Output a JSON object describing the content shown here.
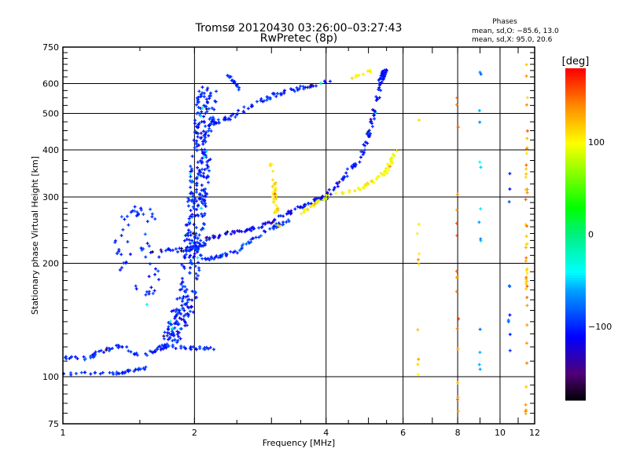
{
  "chart_data": {
    "type": "scatter",
    "title": "Tromsø 20120430 03:26:00–03:27:43",
    "subtitle": "RwPretec (8p)",
    "stats": {
      "heading": "Phases",
      "line_o": "mean, sd,O: −85.6, 13.0",
      "line_x": "mean, sd,X:  95.0, 20.6"
    },
    "xlabel": "Frequency [MHz]",
    "ylabel": "Stationary phase Virtual Height [km]",
    "xscale": "log",
    "yscale": "log",
    "xlim": [
      1,
      12
    ],
    "ylim": [
      75,
      750
    ],
    "xticks": [
      1,
      2,
      4,
      6,
      8,
      10,
      12
    ],
    "xtick_labels": [
      "1",
      "2",
      "4",
      "6",
      "8",
      "10",
      "12"
    ],
    "yticks": [
      75,
      100,
      200,
      300,
      400,
      500,
      600,
      750
    ],
    "ytick_labels": [
      "75",
      "100",
      "200",
      "300",
      "400",
      "500",
      "600",
      "750"
    ],
    "x_gridlines": [
      2,
      4,
      6,
      8,
      10
    ],
    "y_gridlines": [
      100,
      200,
      300,
      400,
      500,
      600
    ],
    "grid": true,
    "colorbar": {
      "label": "[deg]",
      "range": [
        -180,
        180
      ],
      "ticks": [
        100,
        0,
        -100
      ],
      "tick_labels": [
        "100",
        "0",
        "−100"
      ],
      "colormap": "rainbow (black-purple-blue-cyan-green-yellow-red)"
    },
    "traces": [
      {
        "name": "low-trace-a",
        "phase": -95,
        "points": [
          [
            1.0,
            102
          ],
          [
            1.34,
            102
          ],
          [
            1.58,
            106
          ]
        ],
        "count": 40,
        "spread": 0.01
      },
      {
        "name": "low-trace-b",
        "phase": -100,
        "points": [
          [
            1.0,
            112
          ],
          [
            1.16,
            112
          ],
          [
            1.2,
            116
          ],
          [
            1.36,
            121
          ],
          [
            1.51,
            113
          ],
          [
            1.71,
            121
          ],
          [
            1.94,
            119
          ],
          [
            2.2,
            119
          ]
        ],
        "count": 90,
        "spread": 0.012
      },
      {
        "name": "f1-ledge",
        "phase": -100,
        "points": [
          [
            1.51,
            217
          ],
          [
            1.94,
            217
          ],
          [
            2.1,
            225
          ]
        ],
        "count": 45,
        "spread": 0.015
      },
      {
        "name": "f-cusp-vertical",
        "phase": -100,
        "points": [
          [
            1.75,
            120
          ],
          [
            1.92,
            160
          ],
          [
            1.99,
            220
          ],
          [
            2.03,
            300
          ],
          [
            2.08,
            420
          ],
          [
            2.14,
            575
          ]
        ],
        "count": 420,
        "spread": 0.05
      },
      {
        "name": "f2-lower",
        "phase": -110,
        "points": [
          [
            2.125,
            232
          ],
          [
            2.39,
            240
          ],
          [
            2.81,
            249
          ],
          [
            3.19,
            267
          ],
          [
            3.76,
            294
          ],
          [
            4.0,
            300
          ]
        ],
        "count": 90,
        "spread": 0.012
      },
      {
        "name": "f2-lower-b",
        "phase": -95,
        "points": [
          [
            2.125,
            205
          ],
          [
            2.49,
            215
          ],
          [
            2.81,
            237
          ],
          [
            3.3,
            262
          ]
        ],
        "count": 60,
        "spread": 0.012
      },
      {
        "name": "o-mode-rise",
        "phase": -105,
        "points": [
          [
            4.0,
            300
          ],
          [
            4.82,
            383
          ],
          [
            5.13,
            487
          ],
          [
            5.35,
            619
          ],
          [
            5.47,
            656
          ]
        ],
        "count": 110,
        "spread": 0.012
      },
      {
        "name": "x-mode-rise",
        "phase": 100,
        "points": [
          [
            3.5,
            272
          ],
          [
            4.0,
            300
          ],
          [
            4.82,
            316
          ],
          [
            5.47,
            348
          ],
          [
            5.81,
            402
          ]
        ],
        "count": 80,
        "spread": 0.01
      },
      {
        "name": "upper-echo",
        "phase": -100,
        "points": [
          [
            2.125,
            464
          ],
          [
            2.39,
            487
          ],
          [
            2.93,
            549
          ],
          [
            3.32,
            576
          ],
          [
            4.09,
            605
          ]
        ],
        "count": 80,
        "spread": 0.015
      },
      {
        "name": "upper-echo-b",
        "phase": -95,
        "points": [
          [
            2.39,
            630
          ],
          [
            2.55,
            580
          ]
        ],
        "count": 18,
        "spread": 0.01
      },
      {
        "name": "x-vertical",
        "phase": 110,
        "points": [
          [
            3.0,
            375
          ],
          [
            3.06,
            300
          ],
          [
            3.1,
            250
          ]
        ],
        "count": 35,
        "spread": 0.012
      },
      {
        "name": "e-scatter",
        "phase": -95,
        "points": [
          [
            1.35,
            180
          ],
          [
            1.4,
            270
          ],
          [
            1.55,
            280
          ],
          [
            1.62,
            190
          ],
          [
            1.5,
            160
          ]
        ],
        "count": 60,
        "spread": 0.05
      },
      {
        "name": "top-x-echo",
        "phase": 110,
        "points": [
          [
            4.5,
            620
          ],
          [
            5.1,
            650
          ]
        ],
        "count": 10,
        "spread": 0.01
      }
    ],
    "scatter_columns": [
      {
        "name": "column-11-5",
        "freq": 11.5,
        "phase": 130,
        "h_range": [
          78,
          680
        ],
        "count": 45
      },
      {
        "name": "column-8",
        "freq": 8.0,
        "phase": 140,
        "h_range": [
          78,
          600
        ],
        "count": 18
      },
      {
        "name": "column-9",
        "freq": 9.0,
        "phase": -60,
        "h_range": [
          100,
          680
        ],
        "count": 14
      },
      {
        "name": "column-10",
        "freq": 10.5,
        "phase": -100,
        "h_range": [
          100,
          350
        ],
        "count": 10
      },
      {
        "name": "column-6-5",
        "freq": 6.5,
        "phase": 120,
        "h_range": [
          90,
          520
        ],
        "count": 10
      }
    ]
  }
}
